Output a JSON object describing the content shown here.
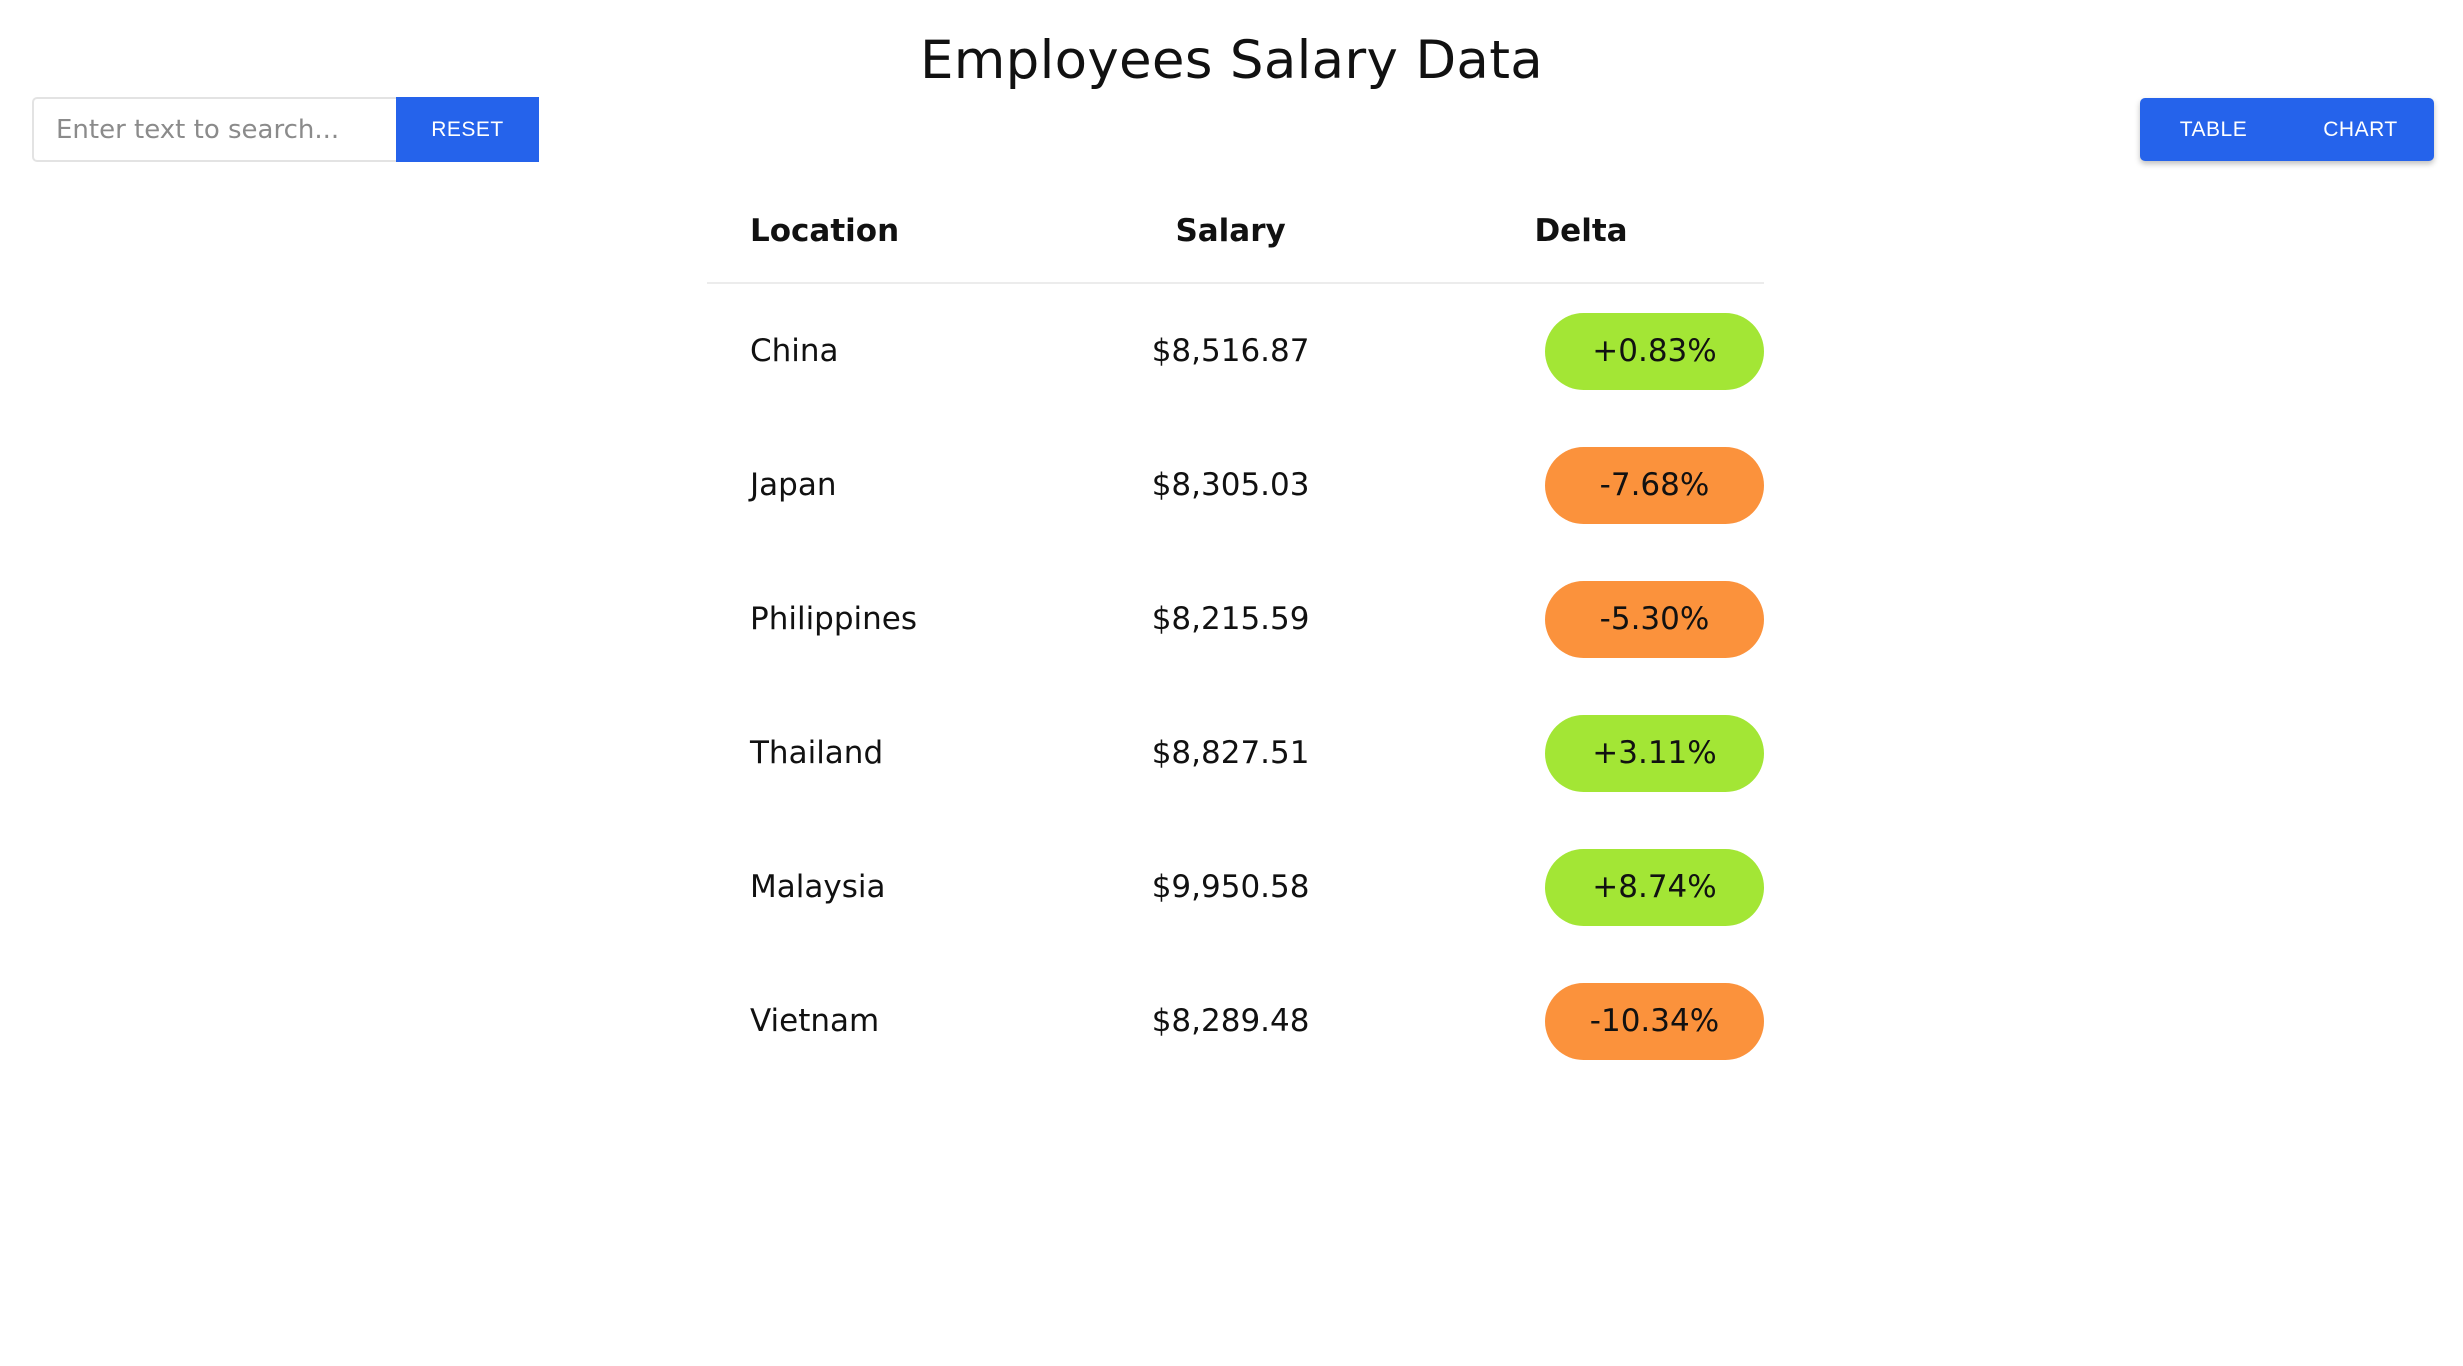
{
  "header": {
    "title": "Employees Salary Data"
  },
  "search": {
    "placeholder": "Enter text to search...",
    "value": "",
    "reset_label": "RESET"
  },
  "view_toggle": {
    "table_label": "TABLE",
    "chart_label": "CHART"
  },
  "colors": {
    "accent": "#2563eb",
    "delta_positive": "#a3e635",
    "delta_negative": "#fb923c"
  },
  "table": {
    "columns": [
      "Location",
      "Salary",
      "Delta"
    ],
    "rows": [
      {
        "location": "China",
        "salary": "$8,516.87",
        "delta": "+0.83%",
        "trend": "positive"
      },
      {
        "location": "Japan",
        "salary": "$8,305.03",
        "delta": "-7.68%",
        "trend": "negative"
      },
      {
        "location": "Philippines",
        "salary": "$8,215.59",
        "delta": "-5.30%",
        "trend": "negative"
      },
      {
        "location": "Thailand",
        "salary": "$8,827.51",
        "delta": "+3.11%",
        "trend": "positive"
      },
      {
        "location": "Malaysia",
        "salary": "$9,950.58",
        "delta": "+8.74%",
        "trend": "positive"
      },
      {
        "location": "Vietnam",
        "salary": "$8,289.48",
        "delta": "-10.34%",
        "trend": "negative"
      }
    ]
  }
}
